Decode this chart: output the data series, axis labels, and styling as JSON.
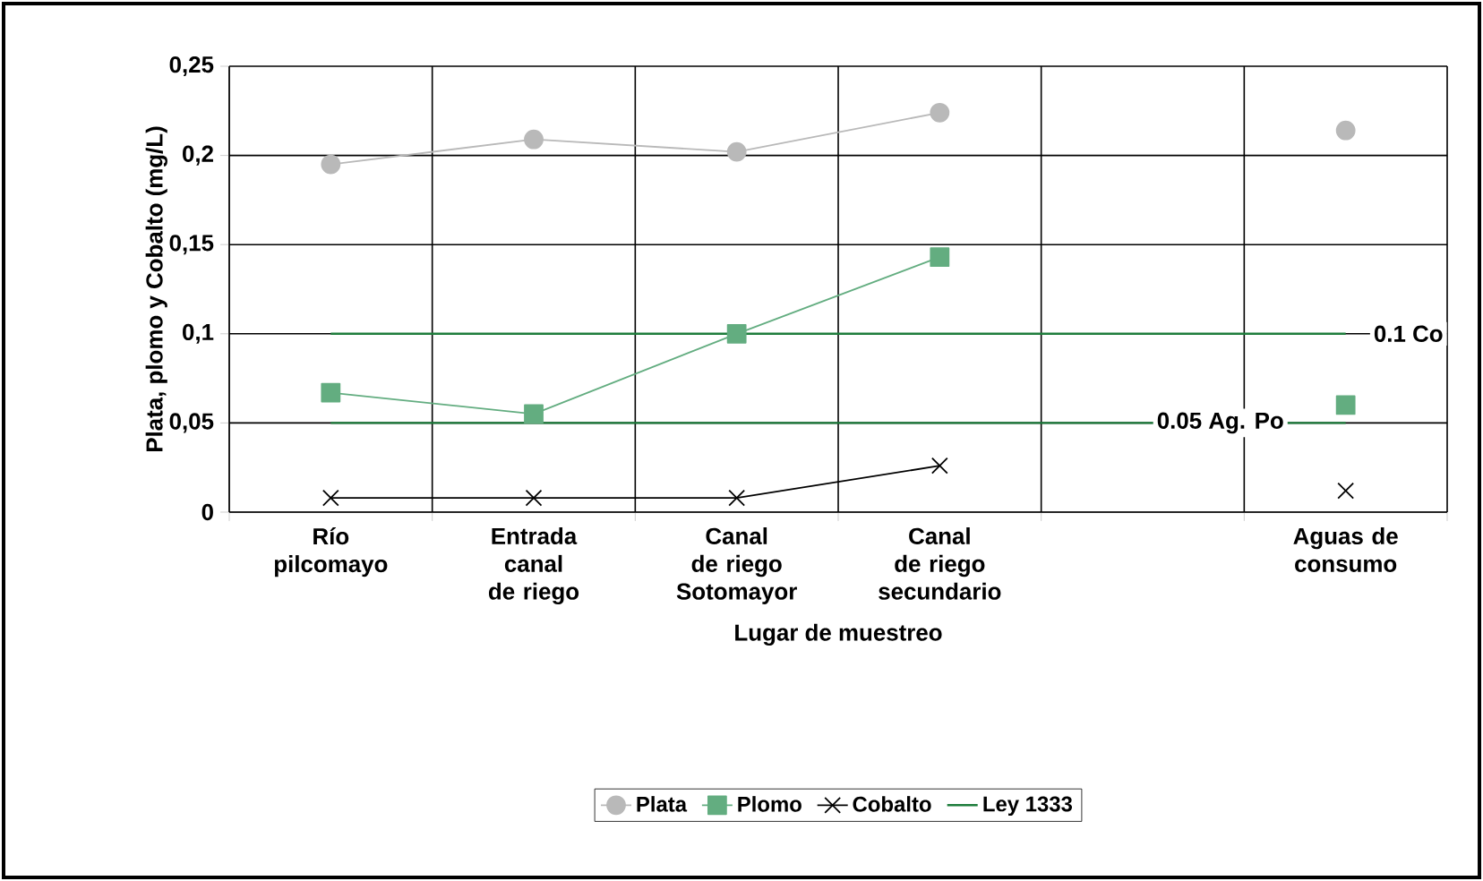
{
  "chart_data": {
    "type": "line",
    "categories": [
      "Río pilcomayo",
      "Entrada canal de riego",
      "Canal de riego Sotomayor",
      "Canal de riego secundario",
      null,
      "Aguas de consumo"
    ],
    "xlabel": "Lugar de muestreo",
    "ylabel": "Plata, plomo y Cobalto (mg/L)",
    "series": [
      {
        "name": "Plata",
        "color": "#b9b9b9",
        "marker": "circle",
        "values": [
          0.195,
          0.209,
          0.202,
          0.224,
          null,
          0.214
        ]
      },
      {
        "name": "Plomo",
        "color": "#63ad80",
        "marker": "square",
        "values": [
          0.067,
          0.055,
          0.1,
          0.143,
          null,
          0.06
        ]
      },
      {
        "name": "Cobalto",
        "color": "#000000",
        "marker": "cross",
        "values": [
          0.008,
          0.008,
          0.008,
          0.026,
          null,
          0.012
        ]
      },
      {
        "name": "Ley 1333",
        "color": "#1e7d3c",
        "marker": "none",
        "values": [
          0.05,
          0.05,
          0.05,
          0.05,
          0.05,
          0.05
        ]
      },
      {
        "color": "#1e7d3c",
        "marker": "none",
        "values": [
          0.1,
          0.1,
          0.1,
          0.1,
          0.1,
          0.1
        ]
      }
    ],
    "annotations": [
      {
        "text": "0.1 Co",
        "y": 0.1
      },
      {
        "text": "0.05 Ag. Po",
        "y": 0.05
      }
    ],
    "ylim": [
      0,
      0.25
    ],
    "yticks": [
      {
        "value": 0,
        "label": "0"
      },
      {
        "value": 0.05,
        "label": "0,05"
      },
      {
        "value": 0.1,
        "label": "0,1"
      },
      {
        "value": 0.15,
        "label": "0,15"
      },
      {
        "value": 0.2,
        "label": "0,2"
      },
      {
        "value": 0.25,
        "label": "0,25"
      }
    ],
    "grid": true,
    "legend": "bottom"
  }
}
